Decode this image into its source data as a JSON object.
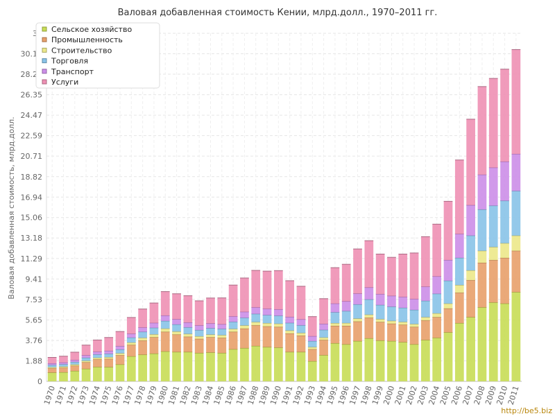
{
  "chart_data": {
    "type": "bar",
    "stacked": true,
    "title": "Валовая добавленная стоимость Кении, млрд.долл., 1970–2011 гг.",
    "xlabel": "",
    "ylabel": "Валовая добавленная стоимость, млрд.долл.",
    "ylim": [
      0,
      32
    ],
    "yticks": [
      "0",
      "1.88",
      "3.76",
      "5.65",
      "7.53",
      "9.41",
      "11.29",
      "13.18",
      "15.06",
      "16.94",
      "18.82",
      "20.71",
      "22.59",
      "24.47",
      "26.35",
      "28.24",
      "30.12",
      "32"
    ],
    "grid": true,
    "legend_position": "top-left",
    "categories": [
      "1970",
      "1971",
      "1972",
      "1973",
      "1974",
      "1975",
      "1976",
      "1977",
      "1978",
      "1979",
      "1980",
      "1981",
      "1982",
      "1983",
      "1984",
      "1985",
      "1986",
      "1987",
      "1988",
      "1989",
      "1990",
      "1991",
      "1992",
      "1993",
      "1994",
      "1995",
      "1996",
      "1997",
      "1998",
      "1999",
      "2000",
      "2001",
      "2002",
      "2003",
      "2004",
      "2005",
      "2006",
      "2007",
      "2008",
      "2009",
      "2010",
      "2011"
    ],
    "series": [
      {
        "name": "Сельское хозяйство",
        "color": "#c8dd55",
        "values": [
          0.8,
          0.83,
          0.95,
          1.15,
          1.32,
          1.31,
          1.55,
          2.3,
          2.45,
          2.55,
          2.75,
          2.7,
          2.7,
          2.6,
          2.65,
          2.6,
          2.95,
          3.05,
          3.25,
          3.15,
          3.1,
          2.7,
          2.7,
          1.85,
          2.4,
          3.5,
          3.4,
          3.7,
          3.95,
          3.75,
          3.7,
          3.6,
          3.4,
          3.8,
          4.0,
          4.5,
          5.35,
          5.9,
          6.8,
          7.25,
          7.15,
          8.2
        ]
      },
      {
        "name": "Промышленность",
        "color": "#e8a06a",
        "values": [
          0.4,
          0.42,
          0.48,
          0.6,
          0.7,
          0.75,
          0.85,
          1.05,
          1.3,
          1.5,
          1.8,
          1.6,
          1.4,
          1.3,
          1.4,
          1.4,
          1.6,
          1.8,
          1.9,
          1.9,
          1.9,
          1.7,
          1.5,
          1.1,
          1.4,
          1.6,
          1.7,
          1.8,
          1.9,
          1.7,
          1.6,
          1.6,
          1.6,
          1.8,
          1.9,
          2.2,
          2.8,
          3.4,
          4.1,
          3.9,
          4.2,
          3.8
        ]
      },
      {
        "name": "Строительство",
        "color": "#ece88a",
        "values": [
          0.1,
          0.11,
          0.12,
          0.14,
          0.15,
          0.16,
          0.18,
          0.22,
          0.25,
          0.27,
          0.3,
          0.28,
          0.26,
          0.24,
          0.25,
          0.25,
          0.27,
          0.29,
          0.3,
          0.3,
          0.3,
          0.27,
          0.25,
          0.2,
          0.23,
          0.25,
          0.26,
          0.27,
          0.28,
          0.27,
          0.26,
          0.26,
          0.27,
          0.3,
          0.35,
          0.45,
          0.7,
          0.9,
          1.1,
          1.2,
          1.35,
          1.4
        ]
      },
      {
        "name": "Торговля",
        "color": "#88c3e8",
        "values": [
          0.2,
          0.21,
          0.23,
          0.28,
          0.3,
          0.31,
          0.35,
          0.45,
          0.55,
          0.6,
          0.7,
          0.65,
          0.6,
          0.57,
          0.58,
          0.57,
          0.65,
          0.7,
          0.75,
          0.74,
          0.73,
          0.7,
          0.7,
          0.55,
          0.7,
          1.0,
          1.1,
          1.3,
          1.4,
          1.3,
          1.3,
          1.3,
          1.3,
          1.5,
          1.8,
          2.1,
          2.5,
          3.2,
          3.8,
          3.8,
          3.9,
          4.1
        ]
      },
      {
        "name": "Транспорт",
        "color": "#cc8ee8",
        "values": [
          0.15,
          0.16,
          0.18,
          0.22,
          0.25,
          0.27,
          0.3,
          0.35,
          0.4,
          0.45,
          0.5,
          0.48,
          0.45,
          0.43,
          0.44,
          0.43,
          0.5,
          0.55,
          0.6,
          0.58,
          0.58,
          0.55,
          0.55,
          0.45,
          0.55,
          0.8,
          0.9,
          1.0,
          1.1,
          1.0,
          1.0,
          1.0,
          1.0,
          1.3,
          1.6,
          1.9,
          2.2,
          2.8,
          3.2,
          3.5,
          3.6,
          3.4
        ]
      },
      {
        "name": "Услуги",
        "color": "#ee90b4",
        "values": [
          0.55,
          0.58,
          0.72,
          0.94,
          1.08,
          1.23,
          1.35,
          1.5,
          1.7,
          1.83,
          2.2,
          2.34,
          2.46,
          2.26,
          2.34,
          2.42,
          2.88,
          3.11,
          3.4,
          3.46,
          3.57,
          3.33,
          3.04,
          1.8,
          2.32,
          3.3,
          3.4,
          4.1,
          4.3,
          3.68,
          3.54,
          3.94,
          4.23,
          4.6,
          4.8,
          5.4,
          6.8,
          7.9,
          8.1,
          8.2,
          8.5,
          9.6
        ]
      }
    ]
  },
  "watermark": "http://be5.biz"
}
